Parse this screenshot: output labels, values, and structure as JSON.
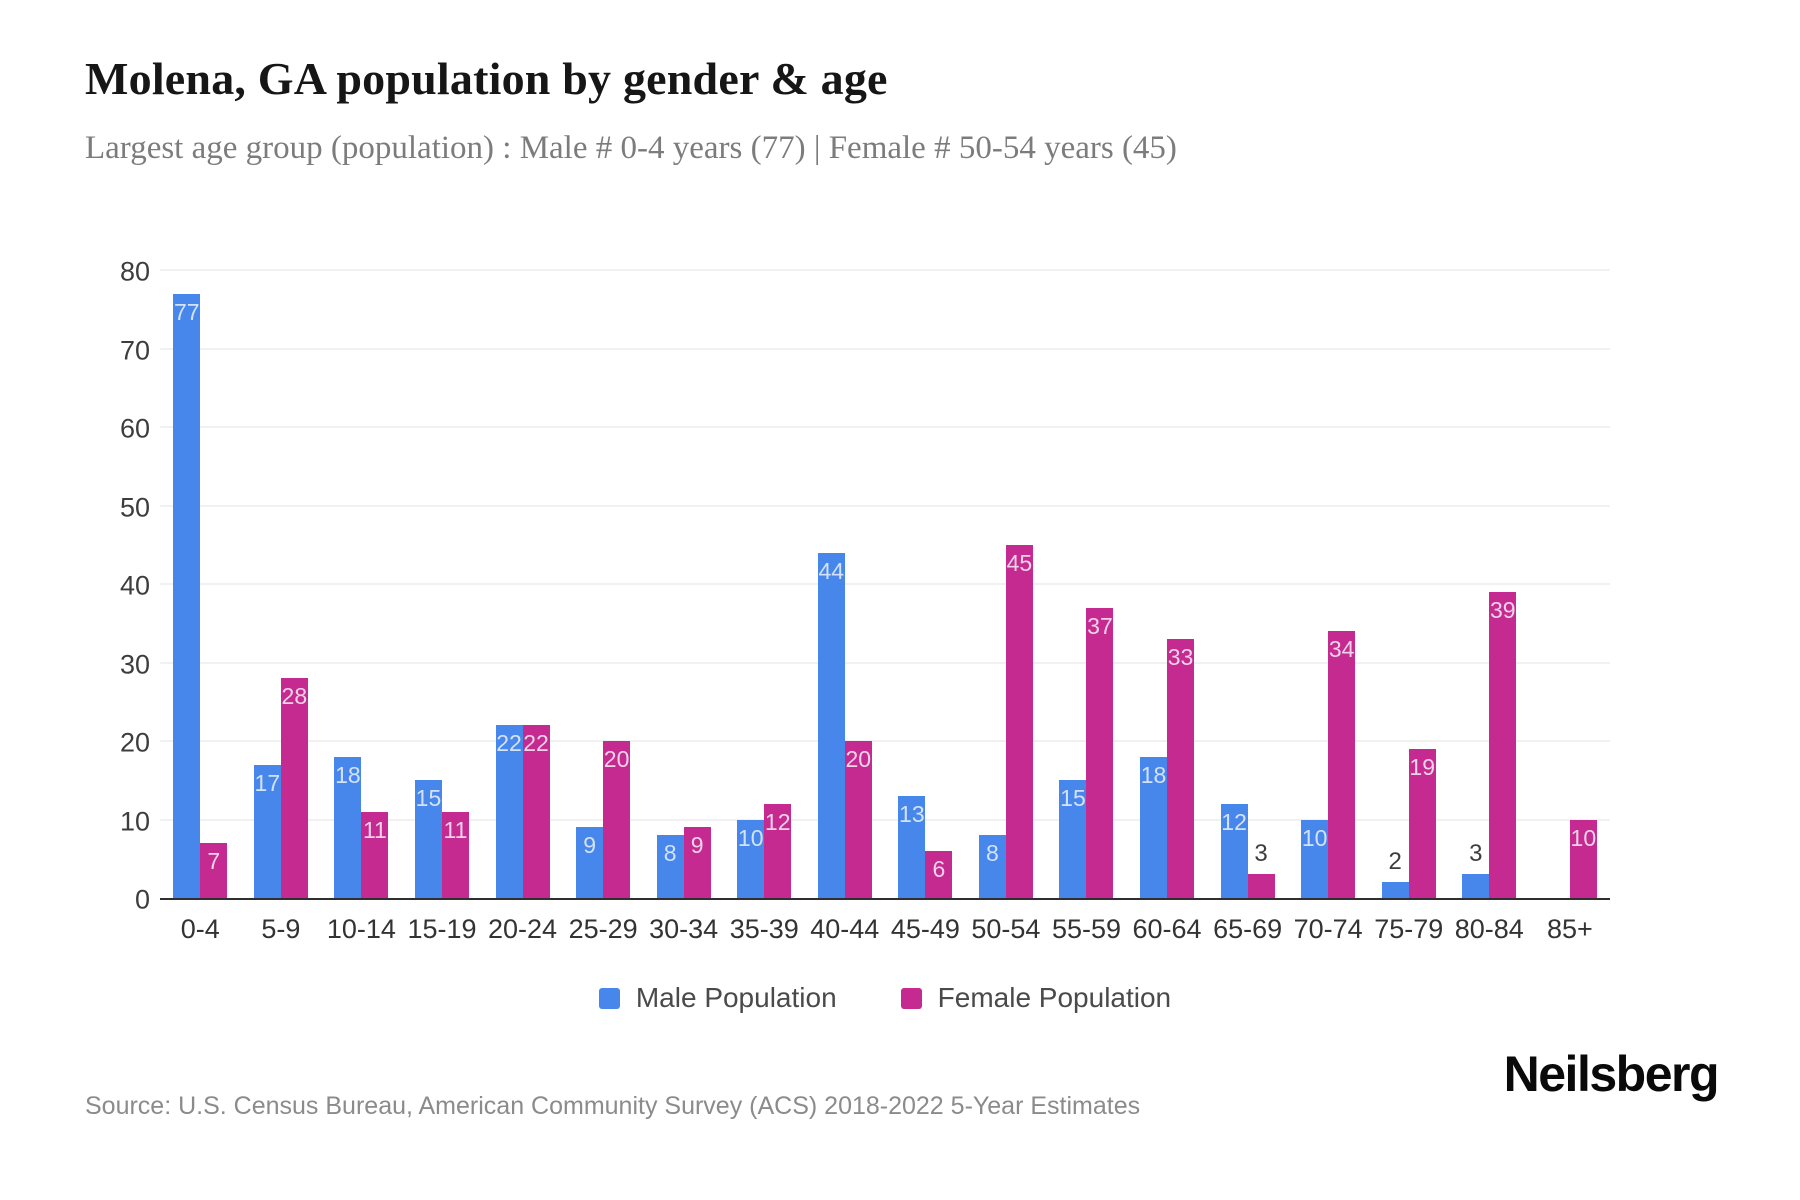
{
  "header": {
    "title": "Molena, GA population by gender & age",
    "subtitle": "Largest age group (population) : Male # 0-4 years (77) | Female # 50-54 years (45)"
  },
  "chart_data": {
    "type": "bar",
    "title": "Molena, GA population by gender & age",
    "xlabel": "",
    "ylabel": "",
    "categories": [
      "0-4",
      "5-9",
      "10-14",
      "15-19",
      "20-24",
      "25-29",
      "30-34",
      "35-39",
      "40-44",
      "45-49",
      "50-54",
      "55-59",
      "60-64",
      "65-69",
      "70-74",
      "75-79",
      "80-84",
      "85+"
    ],
    "series": [
      {
        "name": "Male Population",
        "color": "#4787eb",
        "label_color": "#d3e2fa",
        "values": [
          77,
          17,
          18,
          15,
          22,
          9,
          8,
          10,
          44,
          13,
          8,
          15,
          18,
          12,
          10,
          2,
          3,
          0
        ]
      },
      {
        "name": "Female Population",
        "color": "#c52a90",
        "label_color": "#f1d3e8",
        "values": [
          7,
          28,
          11,
          11,
          22,
          20,
          9,
          12,
          20,
          6,
          45,
          37,
          33,
          3,
          34,
          19,
          39,
          10
        ]
      }
    ],
    "ylim": [
      0,
      80
    ],
    "yticks": [
      0,
      10,
      20,
      30,
      40,
      50,
      60,
      70,
      80
    ],
    "grid": true,
    "outside_label_color": "#3d3d3d",
    "legend_position": "bottom"
  },
  "legend": {
    "items": [
      {
        "label": "Male Population",
        "color": "#4787eb"
      },
      {
        "label": "Female Population",
        "color": "#c52a90"
      }
    ]
  },
  "footer": {
    "source": "Source: U.S. Census Bureau, American Community Survey (ACS) 2018-2022 5-Year Estimates",
    "brand": "Neilsberg"
  }
}
